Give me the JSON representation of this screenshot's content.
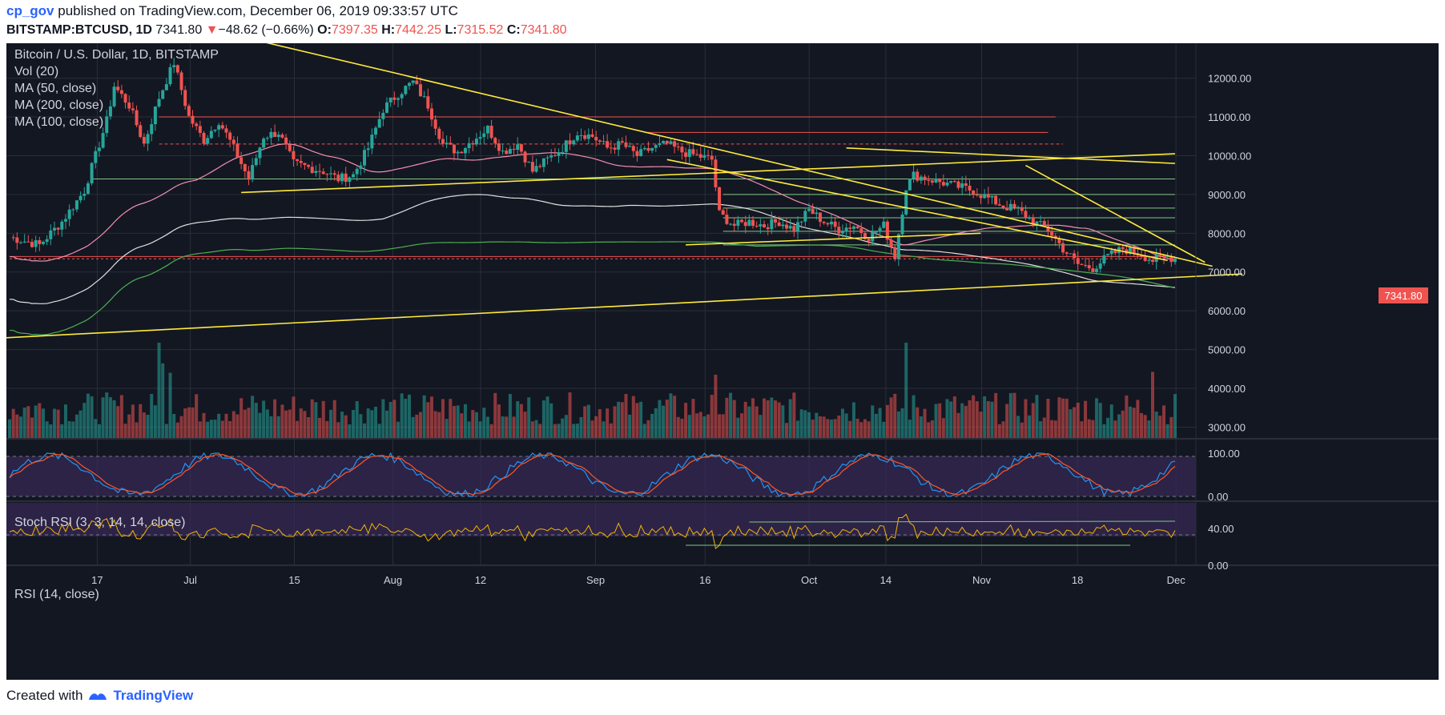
{
  "header": {
    "author": "cp_gov",
    "published_text": "published on TradingView.com, December 06, 2019 09:33:57 UTC",
    "symbol": "BITSTAMP:BTCUSD, 1D",
    "last": "7341.80",
    "change_arrow": "▼",
    "change": "−48.62 (−0.66%)",
    "o_label": "O:",
    "o_val": "7397.35",
    "h_label": "H:",
    "h_val": "7442.25",
    "l_label": "L:",
    "l_val": "7315.52",
    "c_label": "C:",
    "c_val": "7341.80"
  },
  "legend": {
    "title": "Bitcoin / U.S. Dollar, 1D, BITSTAMP",
    "vol": "Vol (20)",
    "ma50": "MA (50, close)",
    "ma200": "MA (200, close)",
    "ma100": "MA (100, close)",
    "stoch": "Stoch RSI (3, 3, 14, 14, close)",
    "rsi": "RSI (14, close)"
  },
  "price_tag": "7341.80",
  "footer": {
    "created": "Created with",
    "brand": "TradingView"
  },
  "colors": {
    "background": "#131722",
    "up": "#26a69a",
    "down": "#ef5350",
    "trendline": "#ffeb3b",
    "ma50": "#f48fb1",
    "ma200": "#4caf50",
    "ma100": "#e0e0e0",
    "stoch_k": "#2196f3",
    "stoch_d": "#ff5722",
    "rsi": "#f4b400",
    "indicator_band": "#3b2a5c"
  },
  "chart_data": {
    "type": "candlestick",
    "x_tick_labels": [
      "17",
      "Jul",
      "15",
      "Aug",
      "12",
      "Sep",
      "16",
      "Oct",
      "14",
      "Nov",
      "18",
      "Dec"
    ],
    "price_axis": [
      "12000.00",
      "11000.00",
      "10000.00",
      "9000.00",
      "8000.00",
      "7000.00",
      "6000.00",
      "5000.00",
      "4000.00",
      "3000.00"
    ],
    "price_range": [
      2700,
      12900
    ],
    "stoch_axis": [
      "100.00",
      "0.00"
    ],
    "rsi_axis": [
      "40.00",
      "0.00"
    ],
    "last_price": 7341.8,
    "daily_close_path": [
      [
        0,
        7900
      ],
      [
        8,
        7700
      ],
      [
        14,
        8300
      ],
      [
        20,
        9100
      ],
      [
        26,
        10900
      ],
      [
        28,
        11800
      ],
      [
        32,
        11300
      ],
      [
        36,
        10300
      ],
      [
        40,
        11500
      ],
      [
        44,
        12400
      ],
      [
        48,
        11000
      ],
      [
        52,
        10400
      ],
      [
        56,
        10900
      ],
      [
        60,
        10200
      ],
      [
        64,
        9400
      ],
      [
        68,
        10500
      ],
      [
        72,
        10600
      ],
      [
        76,
        9800
      ],
      [
        80,
        9700
      ],
      [
        84,
        9600
      ],
      [
        88,
        9400
      ],
      [
        92,
        9500
      ],
      [
        96,
        10200
      ],
      [
        100,
        11200
      ],
      [
        104,
        11600
      ],
      [
        108,
        11900
      ],
      [
        112,
        11300
      ],
      [
        116,
        10300
      ],
      [
        120,
        10100
      ],
      [
        124,
        10400
      ],
      [
        128,
        10700
      ],
      [
        132,
        10100
      ],
      [
        136,
        10300
      ],
      [
        140,
        9600
      ],
      [
        144,
        9900
      ],
      [
        148,
        10200
      ],
      [
        152,
        10600
      ],
      [
        156,
        10500
      ],
      [
        160,
        10200
      ],
      [
        164,
        10300
      ],
      [
        168,
        10000
      ],
      [
        172,
        10200
      ],
      [
        176,
        10300
      ],
      [
        180,
        10100
      ],
      [
        184,
        10000
      ],
      [
        188,
        9900
      ],
      [
        190,
        8500
      ],
      [
        194,
        8200
      ],
      [
        198,
        8300
      ],
      [
        202,
        8200
      ],
      [
        206,
        8300
      ],
      [
        210,
        8100
      ],
      [
        214,
        8600
      ],
      [
        218,
        8300
      ],
      [
        222,
        8100
      ],
      [
        226,
        8200
      ],
      [
        230,
        7900
      ],
      [
        234,
        8200
      ],
      [
        237,
        7400
      ],
      [
        240,
        9200
      ],
      [
        242,
        9500
      ],
      [
        246,
        9400
      ],
      [
        250,
        9300
      ],
      [
        254,
        9200
      ],
      [
        258,
        9100
      ],
      [
        262,
        8900
      ],
      [
        266,
        8700
      ],
      [
        270,
        8600
      ],
      [
        274,
        8300
      ],
      [
        278,
        8100
      ],
      [
        282,
        7600
      ],
      [
        286,
        7200
      ],
      [
        290,
        7100
      ],
      [
        294,
        7400
      ],
      [
        298,
        7600
      ],
      [
        302,
        7500
      ],
      [
        306,
        7300
      ],
      [
        310,
        7400
      ],
      [
        312,
        7341.8
      ]
    ],
    "annotations": "hand-drawn yellow trendlines, horizontal support/resistance levels, volume, Stoch RSI and RSI panes"
  }
}
